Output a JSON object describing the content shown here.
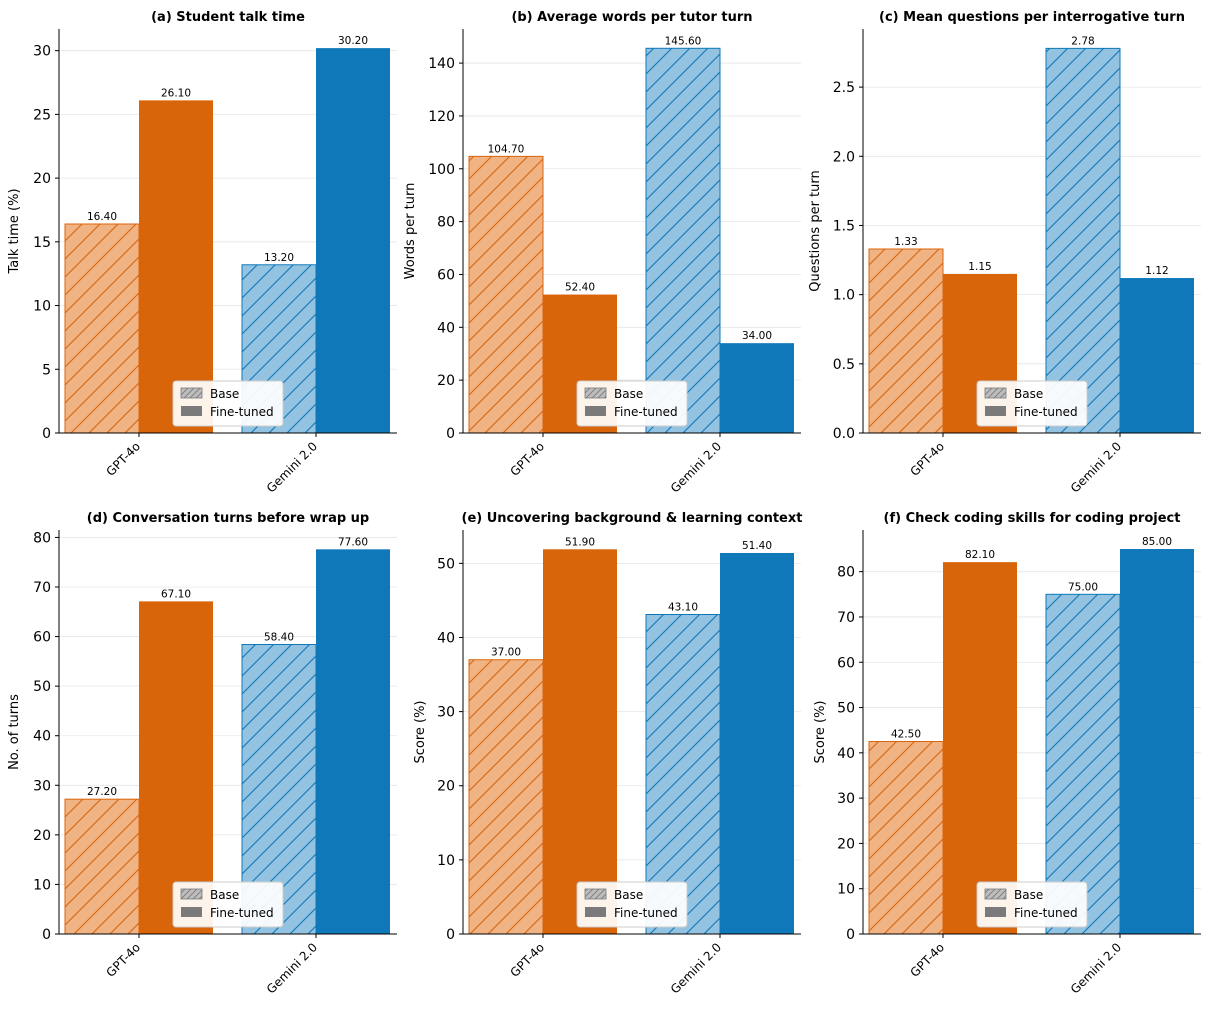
{
  "chart_data": [
    {
      "type": "bar",
      "title": "(a) Student talk time",
      "ylabel": "Talk time (%)",
      "categories": [
        "GPT-4o",
        "Gemini 2.0"
      ],
      "series": [
        {
          "name": "Base",
          "values": [
            16.4,
            13.2
          ]
        },
        {
          "name": "Fine-tuned",
          "values": [
            26.1,
            30.2
          ]
        }
      ],
      "value_labels": [
        [
          "16.40",
          "13.20"
        ],
        [
          "26.10",
          "30.20"
        ]
      ],
      "ylim": [
        0,
        31.7
      ],
      "yticks": [
        0,
        5,
        10,
        15,
        20,
        25,
        30
      ],
      "ytick_labels": [
        "0",
        "5",
        "10",
        "15",
        "20",
        "25",
        "30"
      ],
      "legend": [
        "Base",
        "Fine-tuned"
      ],
      "legend_loc": "lower center"
    },
    {
      "type": "bar",
      "title": "(b) Average words per tutor turn",
      "ylabel": "Words per turn",
      "categories": [
        "GPT-4o",
        "Gemini 2.0"
      ],
      "series": [
        {
          "name": "Base",
          "values": [
            104.7,
            145.6
          ]
        },
        {
          "name": "Fine-tuned",
          "values": [
            52.4,
            34.0
          ]
        }
      ],
      "value_labels": [
        [
          "104.70",
          "145.60"
        ],
        [
          "52.40",
          "34.00"
        ]
      ],
      "ylim": [
        0,
        152.9
      ],
      "yticks": [
        0,
        20,
        40,
        60,
        80,
        100,
        120,
        140
      ],
      "ytick_labels": [
        "0",
        "20",
        "40",
        "60",
        "80",
        "100",
        "120",
        "140"
      ],
      "legend": [
        "Base",
        "Fine-tuned"
      ],
      "legend_loc": "lower center"
    },
    {
      "type": "bar",
      "title": "(c) Mean questions per interrogative turn",
      "ylabel": "Questions per turn",
      "categories": [
        "GPT-4o",
        "Gemini 2.0"
      ],
      "series": [
        {
          "name": "Base",
          "values": [
            1.33,
            2.78
          ]
        },
        {
          "name": "Fine-tuned",
          "values": [
            1.15,
            1.12
          ]
        }
      ],
      "value_labels": [
        [
          "1.33",
          "2.78"
        ],
        [
          "1.15",
          "1.12"
        ]
      ],
      "ylim": [
        0,
        2.92
      ],
      "yticks": [
        0,
        0.5,
        1.0,
        1.5,
        2.0,
        2.5
      ],
      "ytick_labels": [
        "0.0",
        "0.5",
        "1.0",
        "1.5",
        "2.0",
        "2.5"
      ],
      "legend": [
        "Base",
        "Fine-tuned"
      ],
      "legend_loc": "lower center"
    },
    {
      "type": "bar",
      "title": "(d) Conversation turns before wrap up",
      "ylabel": "No. of turns",
      "categories": [
        "GPT-4o",
        "Gemini 2.0"
      ],
      "series": [
        {
          "name": "Base",
          "values": [
            27.2,
            58.4
          ]
        },
        {
          "name": "Fine-tuned",
          "values": [
            67.1,
            77.6
          ]
        }
      ],
      "value_labels": [
        [
          "27.20",
          "58.40"
        ],
        [
          "67.10",
          "77.60"
        ]
      ],
      "ylim": [
        0,
        81.5
      ],
      "yticks": [
        0,
        10,
        20,
        30,
        40,
        50,
        60,
        70,
        80
      ],
      "ytick_labels": [
        "0",
        "10",
        "20",
        "30",
        "40",
        "50",
        "60",
        "70",
        "80"
      ],
      "legend": [
        "Base",
        "Fine-tuned"
      ],
      "legend_loc": "lower center"
    },
    {
      "type": "bar",
      "title": "(e) Uncovering background & learning context",
      "ylabel": "Score (%)",
      "categories": [
        "GPT-4o",
        "Gemini 2.0"
      ],
      "series": [
        {
          "name": "Base",
          "values": [
            37.0,
            43.1
          ]
        },
        {
          "name": "Fine-tuned",
          "values": [
            51.9,
            51.4
          ]
        }
      ],
      "value_labels": [
        [
          "37.00",
          "43.10"
        ],
        [
          "51.90",
          "51.40"
        ]
      ],
      "ylim": [
        0,
        54.5
      ],
      "yticks": [
        0,
        10,
        20,
        30,
        40,
        50
      ],
      "ytick_labels": [
        "0",
        "10",
        "20",
        "30",
        "40",
        "50"
      ],
      "legend": [
        "Base",
        "Fine-tuned"
      ],
      "legend_loc": "lower center"
    },
    {
      "type": "bar",
      "title": "(f) Check coding skills for coding project",
      "ylabel": "Score (%)",
      "categories": [
        "GPT-4o",
        "Gemini 2.0"
      ],
      "series": [
        {
          "name": "Base",
          "values": [
            42.5,
            75.0
          ]
        },
        {
          "name": "Fine-tuned",
          "values": [
            82.1,
            85.0
          ]
        }
      ],
      "value_labels": [
        [
          "42.50",
          "75.00"
        ],
        [
          "82.10",
          "85.00"
        ]
      ],
      "ylim": [
        0,
        89.2
      ],
      "yticks": [
        0,
        10,
        20,
        30,
        40,
        50,
        60,
        70,
        80
      ],
      "ytick_labels": [
        "0",
        "10",
        "20",
        "30",
        "40",
        "50",
        "60",
        "70",
        "80"
      ],
      "legend": [
        "Base",
        "Fine-tuned"
      ],
      "legend_loc": "lower center"
    }
  ],
  "colors": {
    "gpt_base_fill": "#f0b384",
    "gpt_base_hatch": "#d9650b",
    "gpt_fine": "#d9650b",
    "gemini_base_fill": "#93c3e1",
    "gemini_base_hatch": "#0f78b8",
    "gemini_fine": "#0f78b8",
    "legend_base_fill": "#bdbdbd",
    "legend_base_hatch": "#7a7a7a",
    "legend_fine": "#7a7a7a"
  }
}
